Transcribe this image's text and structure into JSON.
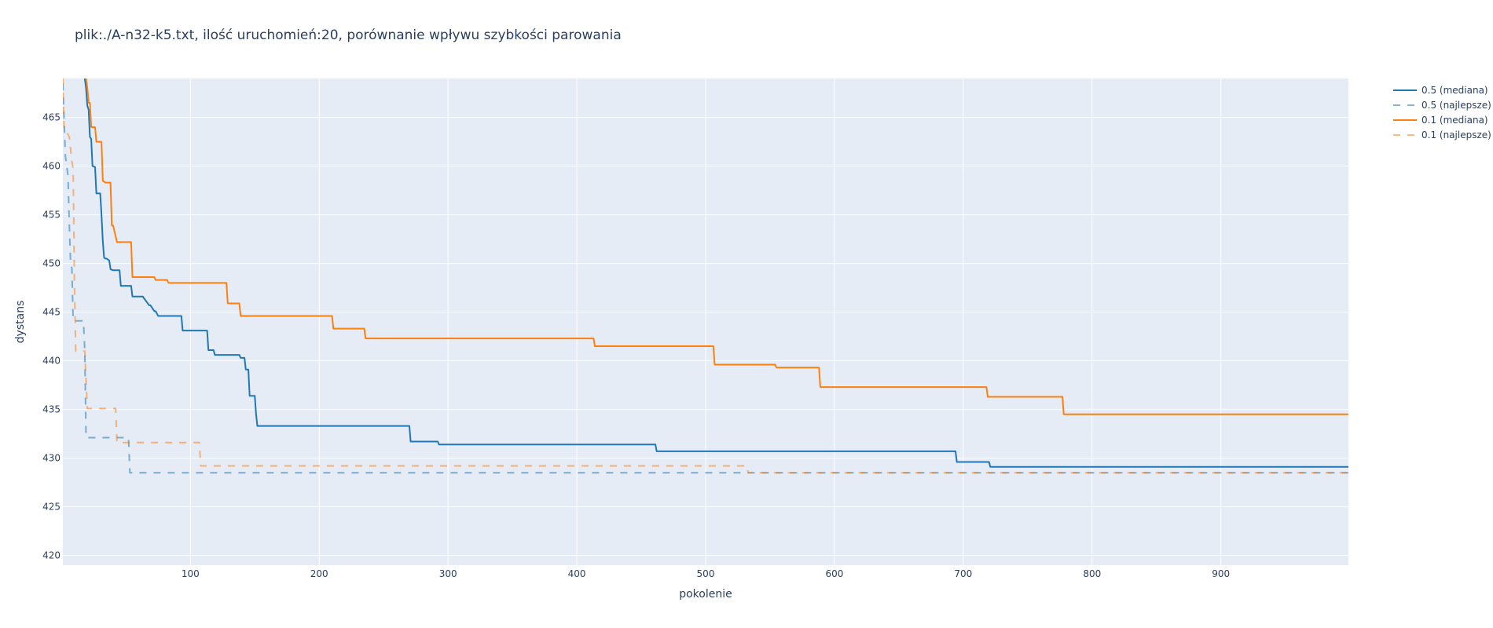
{
  "chart_data": {
    "type": "line",
    "title": "plik:./A-n32-k5.txt, ilość uruchomień:20, porównanie wpływu szybkości parowania",
    "xlabel": "pokolenie",
    "ylabel": "dystans",
    "xlim": [
      1,
      999
    ],
    "ylim": [
      419,
      469
    ],
    "xticks": [
      100,
      200,
      300,
      400,
      500,
      600,
      700,
      800,
      900
    ],
    "yticks": [
      420,
      425,
      430,
      435,
      440,
      445,
      450,
      455,
      460,
      465
    ],
    "grid": true,
    "legend_position": "top-right",
    "plot_background": "#e5ecf6",
    "series": [
      {
        "name": "0.5 (mediana)",
        "color": "#1f77b4",
        "dash": "solid",
        "x": [
          18,
          19,
          20,
          21,
          22,
          23,
          24,
          26,
          27,
          28,
          30,
          31,
          32,
          33,
          34,
          35,
          37,
          38,
          40,
          45,
          46,
          54,
          55,
          63,
          68,
          69,
          72,
          73,
          75,
          76,
          93,
          94,
          113,
          114,
          118,
          119,
          138,
          139,
          142,
          143,
          145,
          146,
          150,
          151,
          152,
          153,
          270,
          271,
          292,
          293,
          461,
          462,
          694,
          695,
          720,
          721,
          999
        ],
        "y": [
          469,
          468,
          466.2,
          465.8,
          463,
          462.8,
          460,
          459.9,
          457.2,
          457.2,
          457.2,
          455,
          452.3,
          450.6,
          450.5,
          450.5,
          450.3,
          449.4,
          449.3,
          449.3,
          447.7,
          447.7,
          446.6,
          446.6,
          445.7,
          445.7,
          445.1,
          445.1,
          444.6,
          444.6,
          444.6,
          443.1,
          443.1,
          441.1,
          441.1,
          440.6,
          440.6,
          440.3,
          440.3,
          439.1,
          439.1,
          436.4,
          436.4,
          434.5,
          433.3,
          433.3,
          433.3,
          431.7,
          431.7,
          431.4,
          431.4,
          430.7,
          430.7,
          429.6,
          429.6,
          429.1,
          429.1
        ]
      },
      {
        "name": "0.5 (najlepsze)",
        "color": "#1f77b4",
        "dash": "dash",
        "x": [
          1,
          2,
          3,
          5,
          6,
          7,
          8,
          9,
          10,
          17,
          18,
          19,
          20,
          52,
          53,
          999
        ],
        "y": [
          468.5,
          464.5,
          461,
          459,
          454,
          450,
          449.5,
          444.1,
          444.1,
          444.1,
          441,
          432.1,
          432.1,
          432.1,
          428.5,
          428.5
        ]
      },
      {
        "name": "0.1 (mediana)",
        "color": "#ff7f0e",
        "dash": "solid",
        "x": [
          19,
          20,
          21,
          22,
          23,
          24,
          26,
          27,
          30,
          31,
          32,
          34,
          35,
          38,
          39,
          40,
          43,
          44,
          54,
          55,
          72,
          73,
          82,
          83,
          128,
          129,
          138,
          139,
          210,
          211,
          235,
          236,
          413,
          414,
          506,
          507,
          554,
          555,
          588,
          589,
          718,
          719,
          777,
          778,
          999
        ],
        "y": [
          469,
          468,
          466.5,
          466.5,
          464,
          464,
          464,
          462.5,
          462.5,
          462.5,
          458.5,
          458.3,
          458.3,
          458.3,
          453.9,
          453.9,
          452.2,
          452.2,
          452.2,
          448.6,
          448.6,
          448.3,
          448.3,
          448,
          448,
          445.9,
          445.9,
          444.6,
          444.6,
          443.3,
          443.3,
          442.3,
          442.3,
          441.5,
          441.5,
          439.6,
          439.6,
          439.3,
          439.3,
          437.3,
          437.3,
          436.3,
          436.3,
          434.5,
          434.5
        ]
      },
      {
        "name": "0.1 (najlepsze)",
        "color": "#ff7f0e",
        "dash": "dash",
        "x": [
          1,
          2,
          3,
          4,
          6,
          8,
          9,
          10,
          11,
          12,
          18,
          19,
          20,
          42,
          43,
          107,
          108,
          532,
          533,
          999
        ],
        "y": [
          469,
          463.7,
          463.7,
          463.5,
          463,
          460.5,
          459.7,
          448,
          441,
          441,
          441,
          438,
          435.1,
          435.1,
          431.6,
          431.6,
          429.2,
          429.2,
          428.5,
          428.5
        ]
      }
    ]
  }
}
